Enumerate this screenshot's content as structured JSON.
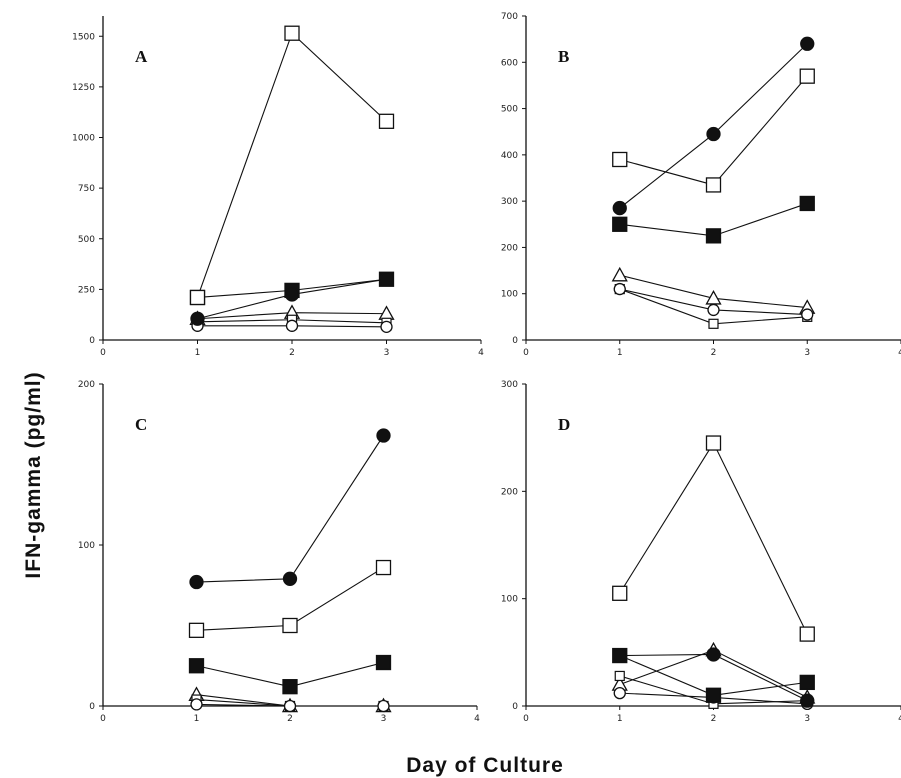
{
  "figure": {
    "ylabel": "IFN-gamma   (pg/ml)",
    "xlabel": "Day  of  Culture"
  },
  "chart_data": [
    {
      "type": "line",
      "panel": "A",
      "label": "A",
      "xlim": [
        0,
        4
      ],
      "ylim": [
        0,
        1600
      ],
      "xticks": [
        0,
        1,
        2,
        3,
        4
      ],
      "yticks": [
        0,
        250,
        500,
        750,
        1000,
        1250,
        1500
      ],
      "x": [
        1,
        2,
        3
      ],
      "series": [
        {
          "marker": "square-open",
          "values": [
            210,
            1515,
            1080
          ]
        },
        {
          "marker": "circle-filled",
          "values": [
            105,
            225,
            300
          ]
        },
        {
          "marker": "square-filled",
          "values": [
            210,
            245,
            300
          ]
        },
        {
          "marker": "triangle-open",
          "values": [
            105,
            135,
            130
          ]
        },
        {
          "marker": "square-open-small",
          "values": [
            90,
            100,
            85
          ]
        },
        {
          "marker": "circle-open",
          "values": [
            70,
            70,
            65
          ]
        }
      ]
    },
    {
      "type": "line",
      "panel": "B",
      "label": "B",
      "xlim": [
        0,
        4
      ],
      "ylim": [
        0,
        700
      ],
      "xticks": [
        0,
        1,
        2,
        3,
        4
      ],
      "yticks": [
        0,
        100,
        200,
        300,
        400,
        500,
        600,
        700
      ],
      "x": [
        1,
        2,
        3
      ],
      "series": [
        {
          "marker": "circle-filled",
          "values": [
            285,
            445,
            640
          ]
        },
        {
          "marker": "square-open",
          "values": [
            390,
            335,
            570
          ]
        },
        {
          "marker": "square-filled",
          "values": [
            250,
            225,
            295
          ]
        },
        {
          "marker": "triangle-open",
          "values": [
            140,
            90,
            70
          ]
        },
        {
          "marker": "circle-open",
          "values": [
            110,
            65,
            55
          ]
        },
        {
          "marker": "square-open-small",
          "values": [
            110,
            35,
            50
          ]
        }
      ]
    },
    {
      "type": "line",
      "panel": "C",
      "label": "C",
      "xlim": [
        0,
        4
      ],
      "ylim": [
        0,
        200
      ],
      "xticks": [
        0,
        1,
        2,
        3,
        4
      ],
      "yticks": [
        0,
        100,
        200
      ],
      "x": [
        1,
        2,
        3
      ],
      "series": [
        {
          "marker": "circle-filled",
          "values": [
            77,
            79,
            168
          ]
        },
        {
          "marker": "square-open",
          "values": [
            47,
            50,
            86
          ]
        },
        {
          "marker": "square-filled",
          "values": [
            25,
            12,
            27
          ]
        },
        {
          "marker": "triangle-open",
          "values": [
            7,
            0,
            0
          ]
        },
        {
          "marker": "square-open-small",
          "values": [
            4,
            0,
            0
          ]
        },
        {
          "marker": "circle-open",
          "values": [
            1,
            0,
            0
          ]
        }
      ]
    },
    {
      "type": "line",
      "panel": "D",
      "label": "D",
      "xlim": [
        0,
        4
      ],
      "ylim": [
        0,
        300
      ],
      "xticks": [
        0,
        1,
        2,
        3,
        4
      ],
      "yticks": [
        0,
        100,
        200,
        300
      ],
      "x": [
        1,
        2,
        3
      ],
      "series": [
        {
          "marker": "square-open",
          "values": [
            105,
            245,
            67
          ]
        },
        {
          "marker": "square-filled",
          "values": [
            47,
            10,
            22
          ]
        },
        {
          "marker": "circle-filled",
          "values": [
            47,
            48,
            5
          ]
        },
        {
          "marker": "triangle-open",
          "values": [
            20,
            52,
            8
          ]
        },
        {
          "marker": "square-open-small",
          "values": [
            28,
            2,
            5
          ]
        },
        {
          "marker": "circle-open",
          "values": [
            12,
            8,
            2
          ]
        }
      ]
    }
  ]
}
